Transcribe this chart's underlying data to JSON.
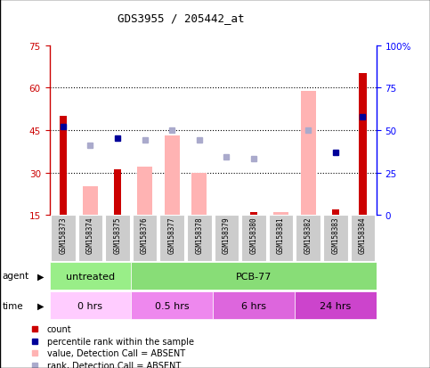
{
  "title": "GDS3955 / 205442_at",
  "samples": [
    "GSM158373",
    "GSM158374",
    "GSM158375",
    "GSM158376",
    "GSM158377",
    "GSM158378",
    "GSM158379",
    "GSM158380",
    "GSM158381",
    "GSM158382",
    "GSM158383",
    "GSM158384"
  ],
  "count_values": [
    50,
    0,
    31,
    0,
    0,
    0,
    0,
    16,
    0,
    0,
    17,
    65
  ],
  "percentile_rank": [
    52,
    0,
    45,
    0,
    0,
    0,
    0,
    0,
    0,
    0,
    37,
    58
  ],
  "absent_value": [
    0,
    25,
    0,
    32,
    43,
    30,
    0,
    0,
    16,
    59,
    0,
    0
  ],
  "absent_rank": [
    0,
    41,
    0,
    44,
    50,
    44,
    34,
    33,
    0,
    50,
    0,
    0
  ],
  "count_present": [
    true,
    false,
    true,
    false,
    false,
    false,
    false,
    true,
    false,
    false,
    true,
    true
  ],
  "percentile_present": [
    true,
    false,
    true,
    false,
    false,
    false,
    false,
    false,
    false,
    false,
    true,
    true
  ],
  "absent_value_present": [
    false,
    true,
    false,
    true,
    true,
    true,
    false,
    false,
    true,
    true,
    false,
    false
  ],
  "absent_rank_present": [
    false,
    true,
    false,
    true,
    true,
    true,
    true,
    true,
    false,
    true,
    false,
    false
  ],
  "left_ylim": [
    15,
    75
  ],
  "left_yticks": [
    15,
    30,
    45,
    60,
    75
  ],
  "right_ylim": [
    0,
    100
  ],
  "right_yticks": [
    0,
    25,
    50,
    75,
    100
  ],
  "right_yticklabels": [
    "0",
    "25",
    "50",
    "75",
    "100%"
  ],
  "color_count": "#cc0000",
  "color_percentile": "#000099",
  "color_absent_value": "#ffb3b3",
  "color_absent_rank": "#aaaacc",
  "dotted_lines": [
    30,
    45,
    60
  ],
  "agent_row": [
    {
      "label": "untreated",
      "start": 0,
      "end": 3,
      "color": "#99ee88"
    },
    {
      "label": "PCB-77",
      "start": 3,
      "end": 12,
      "color": "#88dd77"
    }
  ],
  "time_row": [
    {
      "label": "0 hrs",
      "start": 0,
      "end": 3,
      "color": "#ffccff"
    },
    {
      "label": "0.5 hrs",
      "start": 3,
      "end": 6,
      "color": "#ee88ee"
    },
    {
      "label": "6 hrs",
      "start": 6,
      "end": 9,
      "color": "#dd66dd"
    },
    {
      "label": "24 hrs",
      "start": 9,
      "end": 12,
      "color": "#cc44cc"
    }
  ],
  "legend": [
    {
      "label": "count",
      "color": "#cc0000"
    },
    {
      "label": "percentile rank within the sample",
      "color": "#000099"
    },
    {
      "label": "value, Detection Call = ABSENT",
      "color": "#ffb3b3"
    },
    {
      "label": "rank, Detection Call = ABSENT",
      "color": "#aaaacc"
    }
  ],
  "bg_color": "#ffffff",
  "plot_bg": "#ffffff",
  "xticklabel_bg": "#cccccc"
}
